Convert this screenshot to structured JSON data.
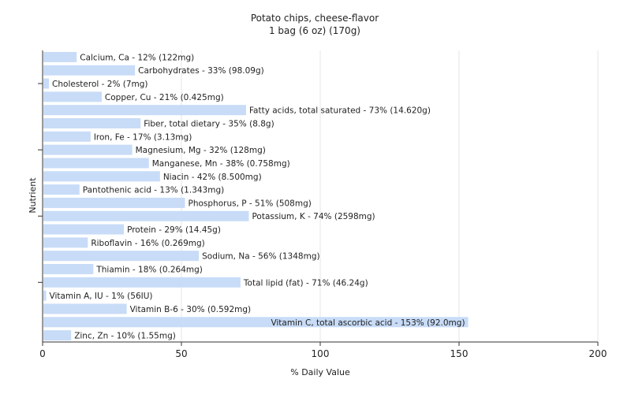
{
  "chart_data": {
    "type": "bar",
    "orientation": "horizontal",
    "title": "Potato chips, cheese-flavor",
    "subtitle": "1 bag (6 oz) (170g)",
    "xlabel": "% Daily Value",
    "ylabel": "Nutrient",
    "xlim": [
      0,
      200
    ],
    "xticks": [
      0,
      50,
      100,
      150,
      200
    ],
    "grid": true,
    "bar_color": "#c8dcf7",
    "bars": [
      {
        "label": "Calcium, Ca - 12% (122mg)",
        "value": 12
      },
      {
        "label": "Carbohydrates - 33% (98.09g)",
        "value": 33
      },
      {
        "label": "Cholesterol - 2% (7mg)",
        "value": 2
      },
      {
        "label": "Copper, Cu - 21% (0.425mg)",
        "value": 21
      },
      {
        "label": "Fatty acids, total saturated - 73% (14.620g)",
        "value": 73
      },
      {
        "label": "Fiber, total dietary - 35% (8.8g)",
        "value": 35
      },
      {
        "label": "Iron, Fe - 17% (3.13mg)",
        "value": 17
      },
      {
        "label": "Magnesium, Mg - 32% (128mg)",
        "value": 32
      },
      {
        "label": "Manganese, Mn - 38% (0.758mg)",
        "value": 38
      },
      {
        "label": "Niacin - 42% (8.500mg)",
        "value": 42
      },
      {
        "label": "Pantothenic acid - 13% (1.343mg)",
        "value": 13
      },
      {
        "label": "Phosphorus, P - 51% (508mg)",
        "value": 51
      },
      {
        "label": "Potassium, K - 74% (2598mg)",
        "value": 74
      },
      {
        "label": "Protein - 29% (14.45g)",
        "value": 29
      },
      {
        "label": "Riboflavin - 16% (0.269mg)",
        "value": 16
      },
      {
        "label": "Sodium, Na - 56% (1348mg)",
        "value": 56
      },
      {
        "label": "Thiamin - 18% (0.264mg)",
        "value": 18
      },
      {
        "label": "Total lipid (fat) - 71% (46.24g)",
        "value": 71
      },
      {
        "label": "Vitamin A, IU - 1% (56IU)",
        "value": 1
      },
      {
        "label": "Vitamin B-6 - 30% (0.592mg)",
        "value": 30
      },
      {
        "label": "Vitamin C, total ascorbic acid - 153% (92.0mg)",
        "value": 153
      },
      {
        "label": "Zinc, Zn - 10% (1.55mg)",
        "value": 10
      }
    ]
  }
}
